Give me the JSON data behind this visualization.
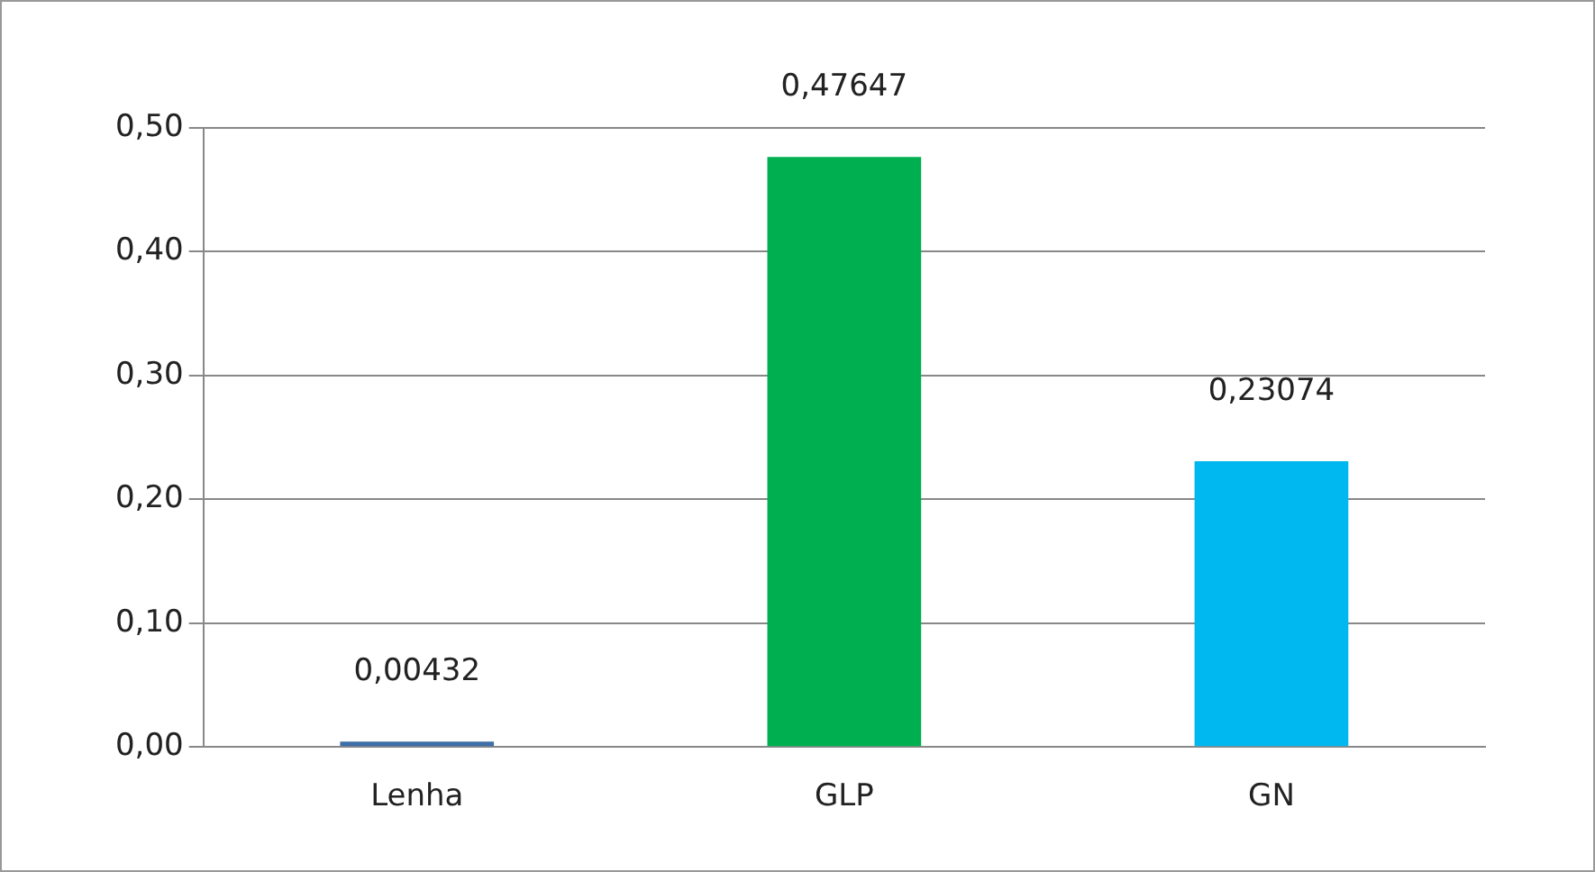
{
  "chart_data": {
    "type": "bar",
    "categories": [
      "Lenha",
      "GLP",
      "GN"
    ],
    "values": [
      0.00432,
      0.47647,
      0.23074
    ],
    "colors": [
      "#3e6fa6",
      "#00b050",
      "#00b8f0"
    ],
    "value_labels": [
      "0,00432",
      "0,47647",
      "0,23074"
    ],
    "ylim": [
      0,
      0.5
    ],
    "yticks": [
      {
        "value": 0,
        "label": "0,00"
      },
      {
        "value": 0.1,
        "label": "0,10"
      },
      {
        "value": 0.2,
        "label": "0,20"
      },
      {
        "value": 0.3,
        "label": "0,30"
      },
      {
        "value": 0.4,
        "label": "0,40"
      },
      {
        "value": 0.5,
        "label": "0,50"
      }
    ],
    "grid": "y"
  }
}
